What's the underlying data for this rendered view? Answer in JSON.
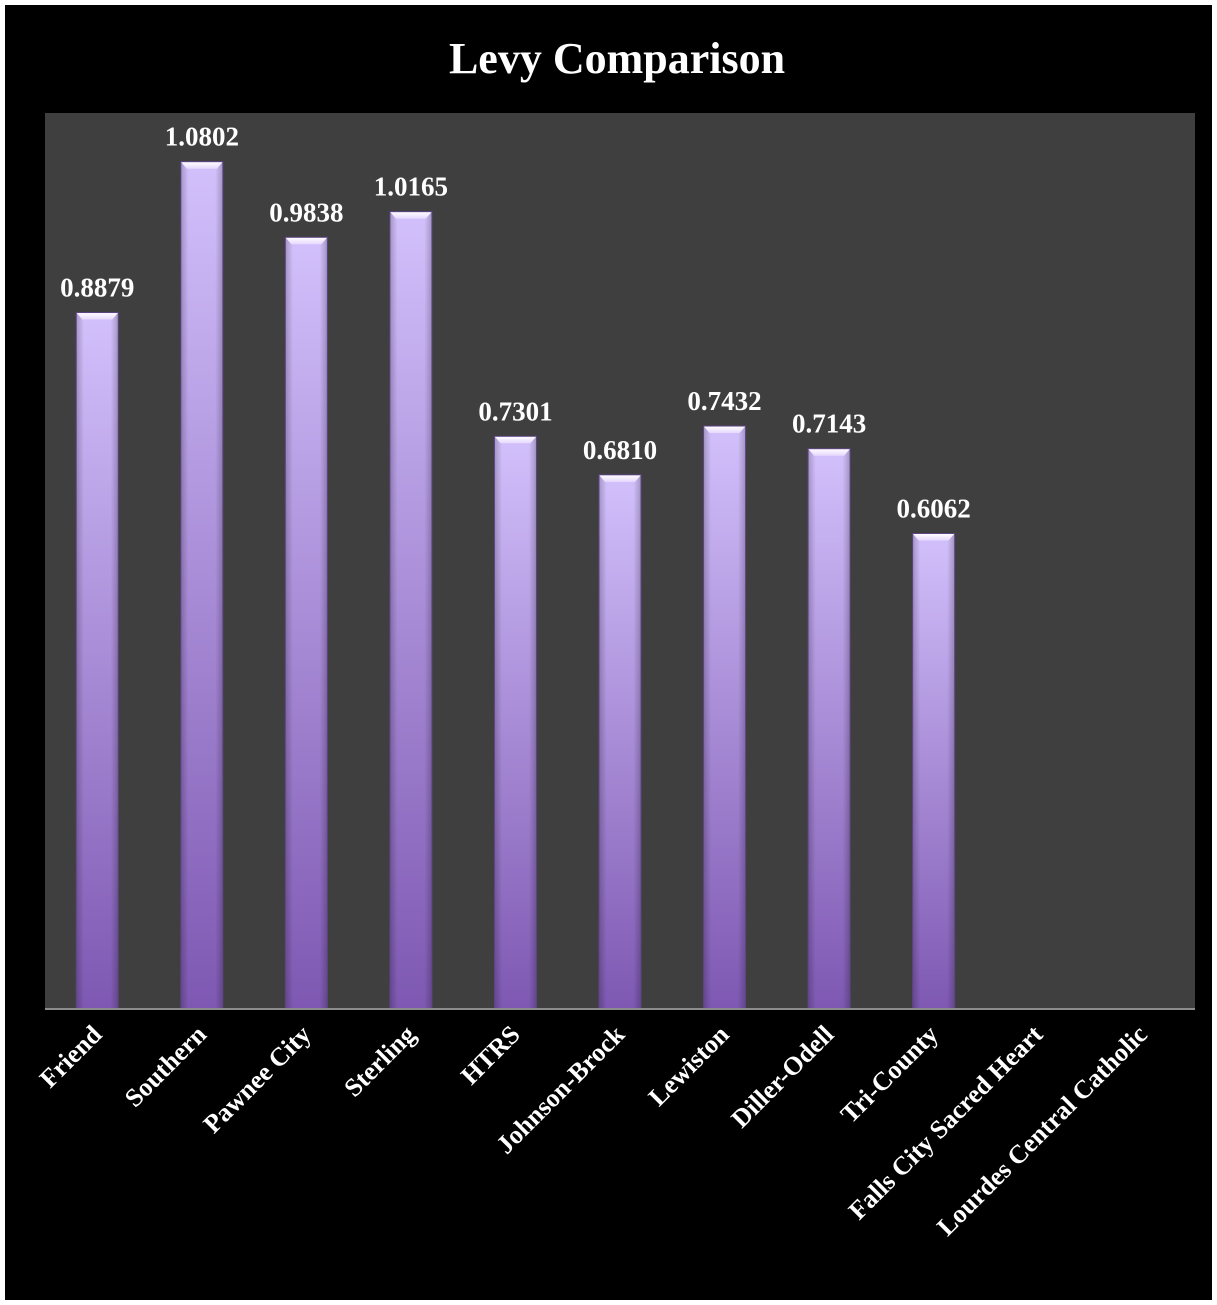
{
  "chart_data": {
    "type": "bar",
    "title": "Levy Comparison",
    "xlabel": "",
    "ylabel": "",
    "categories": [
      "Friend",
      "Southern",
      "Pawnee City",
      "Sterling",
      "HTRS",
      "Johnson-Brock",
      "Lewiston",
      "Diller-Odell",
      "Tri-County",
      "Falls City Sacred Heart",
      "Lourdes Central Catholic"
    ],
    "values": [
      0.8879,
      1.0802,
      0.9838,
      1.0165,
      0.7301,
      0.681,
      0.7432,
      0.7143,
      0.6062,
      null,
      null
    ],
    "data_labels": [
      "0.8879",
      "1.0802",
      "0.9838",
      "1.0165",
      "0.7301",
      "0.6810",
      "0.7432",
      "0.7143",
      "0.6062",
      "",
      ""
    ],
    "ylim": [
      0,
      1.2
    ],
    "grid": false,
    "legend": "none",
    "colors": {
      "background": "#000000",
      "plot_area": "#3f3f3f",
      "bar_top": "#d2c0fb",
      "bar_bottom": "#7e58b2",
      "text": "#ffffff"
    }
  }
}
